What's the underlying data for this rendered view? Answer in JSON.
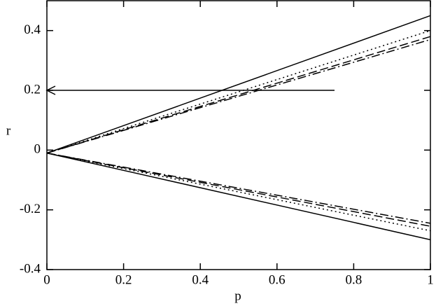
{
  "chart_data": {
    "type": "line",
    "xlabel": "p",
    "ylabel": "r",
    "x": [
      0,
      1
    ],
    "series": [
      {
        "color": "#000000",
        "dash": "solid",
        "values": [
          -0.01,
          0.45
        ]
      },
      {
        "color": "#000000",
        "dash": "dotted",
        "values": [
          -0.01,
          0.4
        ]
      },
      {
        "color": "#000000",
        "dash": "dashed",
        "values": [
          -0.01,
          0.38
        ]
      },
      {
        "color": "#000000",
        "dash": "dashdot",
        "values": [
          -0.01,
          0.37
        ]
      },
      {
        "color": "#000000",
        "dash": "solid",
        "values": [
          -0.01,
          -0.3
        ]
      },
      {
        "color": "#000000",
        "dash": "dotted",
        "values": [
          -0.01,
          -0.27
        ]
      },
      {
        "color": "#000000",
        "dash": "dashed",
        "values": [
          -0.01,
          -0.255
        ]
      },
      {
        "color": "#000000",
        "dash": "dashdot",
        "values": [
          -0.01,
          -0.245
        ]
      }
    ],
    "arrow": {
      "x_start": 0.75,
      "x_end": 0,
      "y": 0.2
    },
    "xlim": [
      0,
      1
    ],
    "xticks": [
      0,
      0.2,
      0.4,
      0.6,
      0.8,
      1
    ],
    "ylim": [
      -0.4,
      0.5
    ],
    "yticks": [
      -0.4,
      -0.2,
      0,
      0.2,
      0.4
    ],
    "grid": false
  }
}
